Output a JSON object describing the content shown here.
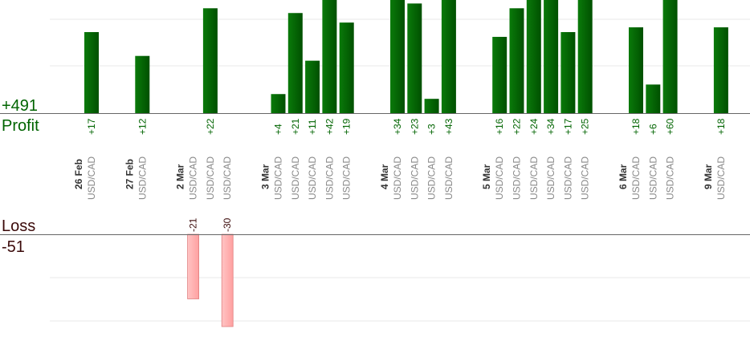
{
  "summary": {
    "profit_total": "+491",
    "profit_label": "Profit",
    "loss_label": "Loss",
    "loss_total": "-51"
  },
  "colors": {
    "profit_bar": "#006400",
    "profit_text": "#006400",
    "loss_bar": "#ffb3b3",
    "loss_border": "#e08080",
    "loss_text": "#3b0a0a",
    "axis": "#666666",
    "grid": "#e8e8e8"
  },
  "chart_data": {
    "type": "bar",
    "profit_axis_max": 25,
    "loss_axis_max": 30,
    "groups": [
      {
        "date": "26 Feb",
        "trades": [
          {
            "pair": "USD/CAD",
            "value": 17,
            "label": "+17"
          }
        ]
      },
      {
        "date": "27 Feb",
        "trades": [
          {
            "pair": "USD/CAD",
            "value": 12,
            "label": "+12"
          }
        ]
      },
      {
        "date": "2 Mar",
        "trades": [
          {
            "pair": "USD/CAD",
            "value": -21,
            "label": "-21"
          },
          {
            "pair": "USD/CAD",
            "value": 22,
            "label": "+22"
          },
          {
            "pair": "USD/CAD",
            "value": -30,
            "label": "-30"
          }
        ]
      },
      {
        "date": "3 Mar",
        "trades": [
          {
            "pair": "USD/CAD",
            "value": 4,
            "label": "+4"
          },
          {
            "pair": "USD/CAD",
            "value": 21,
            "label": "+21"
          },
          {
            "pair": "USD/CAD",
            "value": 11,
            "label": "+11"
          },
          {
            "pair": "USD/CAD",
            "value": 42,
            "label": "+42"
          },
          {
            "pair": "USD/CAD",
            "value": 19,
            "label": "+19"
          }
        ]
      },
      {
        "date": "4 Mar",
        "trades": [
          {
            "pair": "USD/CAD",
            "value": 34,
            "label": "+34"
          },
          {
            "pair": "USD/CAD",
            "value": 23,
            "label": "+23"
          },
          {
            "pair": "USD/CAD",
            "value": 3,
            "label": "+3"
          },
          {
            "pair": "USD/CAD",
            "value": 43,
            "label": "+43"
          }
        ]
      },
      {
        "date": "5 Mar",
        "trades": [
          {
            "pair": "USD/CAD",
            "value": 16,
            "label": "+16"
          },
          {
            "pair": "USD/CAD",
            "value": 22,
            "label": "+22"
          },
          {
            "pair": "USD/CAD",
            "value": 24,
            "label": "+24"
          },
          {
            "pair": "USD/CAD",
            "value": 34,
            "label": "+34"
          },
          {
            "pair": "USD/CAD",
            "value": 17,
            "label": "+17"
          },
          {
            "pair": "USD/CAD",
            "value": 25,
            "label": "+25"
          }
        ]
      },
      {
        "date": "6 Mar",
        "trades": [
          {
            "pair": "USD/CAD",
            "value": 18,
            "label": "+18"
          },
          {
            "pair": "USD/CAD",
            "value": 6,
            "label": "+6"
          },
          {
            "pair": "USD/CAD",
            "value": 60,
            "label": "+60"
          }
        ]
      },
      {
        "date": "9 Mar",
        "trades": [
          {
            "pair": "USD/CAD",
            "value": 18,
            "label": "+18"
          }
        ]
      }
    ]
  }
}
